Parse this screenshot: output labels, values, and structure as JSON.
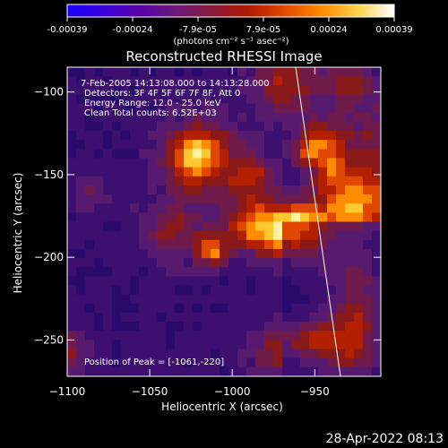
{
  "colorbar": {
    "gradient_stops": [
      "#1a00ff",
      "#3a00d9",
      "#5a00a8",
      "#6b1a7a",
      "#8a1a3a",
      "#b21a00",
      "#e04a00",
      "#ff8a00",
      "#ffd24a",
      "#ffffff"
    ],
    "ticks": [
      "-0.00039",
      "-0.00024",
      "-7.9e-05",
      "7.9e-05",
      "0.00024",
      "0.00039"
    ],
    "units_label": "(photons cm⁻² s⁻¹ asec⁻²)"
  },
  "image": {
    "title": "Reconstructed RHESSI Image",
    "info_lines": [
      "7-Feb-2005 14:13:08.000 to 14:13:28.000",
      "Detectors: 3F 4F 5F 6F 7F 8F, Att 0",
      "Energy Range: 12.0 - 25.0 keV",
      "Clean      Total counts: 6.52E+03"
    ],
    "peak_label": "Position of Peak = [-1061,-220]"
  },
  "axes": {
    "x_label": "Heliocentric X (arcsec)",
    "y_label": "Heliocentric Y (arcsec)",
    "x_ticks": [
      "-1100",
      "-1050",
      "-1000",
      "-950"
    ],
    "y_ticks": [
      "-100",
      "-150",
      "-200",
      "-250"
    ],
    "xlim": [
      -1100,
      -910
    ],
    "ylim": [
      -272,
      -85
    ]
  },
  "footer": {
    "timestamp": "28-Apr-2022 08:13"
  }
}
